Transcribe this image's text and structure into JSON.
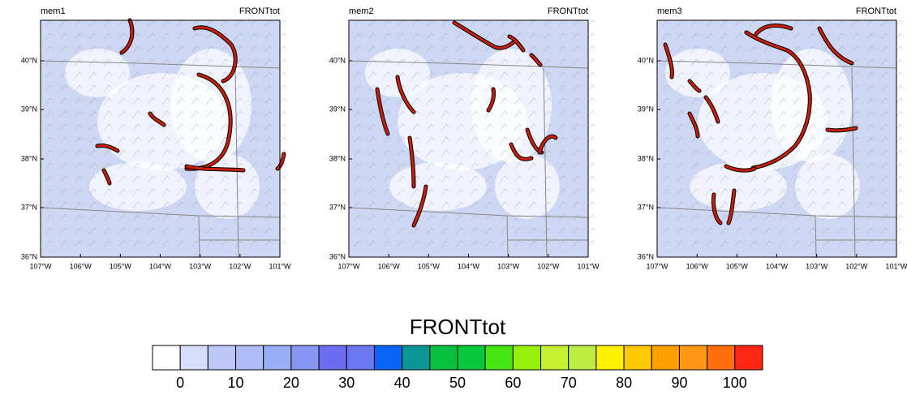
{
  "panels": [
    {
      "member": "mem1",
      "field": "FRONTtot"
    },
    {
      "member": "mem2",
      "field": "FRONTtot"
    },
    {
      "member": "mem3",
      "field": "FRONTtot"
    }
  ],
  "lat_labels": [
    "40°N",
    "39°N",
    "38°N",
    "37°N",
    "36°N"
  ],
  "lon_labels": [
    "107°W",
    "106°W",
    "105°W",
    "104°W",
    "103°W",
    "102°W",
    "101°W"
  ],
  "colorbar": {
    "title": "FRONTtot",
    "colors": [
      "#ffffff",
      "#d6dcfa",
      "#bec8f8",
      "#b0bcf6",
      "#98aef6",
      "#8696f2",
      "#6c6cf0",
      "#6a78f2",
      "#0a64f8",
      "#0a9696",
      "#0ac040",
      "#0ac83c",
      "#46e614",
      "#96f00a",
      "#c8f032",
      "#beee46",
      "#fff000",
      "#ffc800",
      "#ffa000",
      "#ff9614",
      "#ff6e0a",
      "#ff2814"
    ],
    "labels": [
      "0",
      "10",
      "20",
      "30",
      "40",
      "50",
      "60",
      "70",
      "80",
      "90",
      "100"
    ]
  }
}
